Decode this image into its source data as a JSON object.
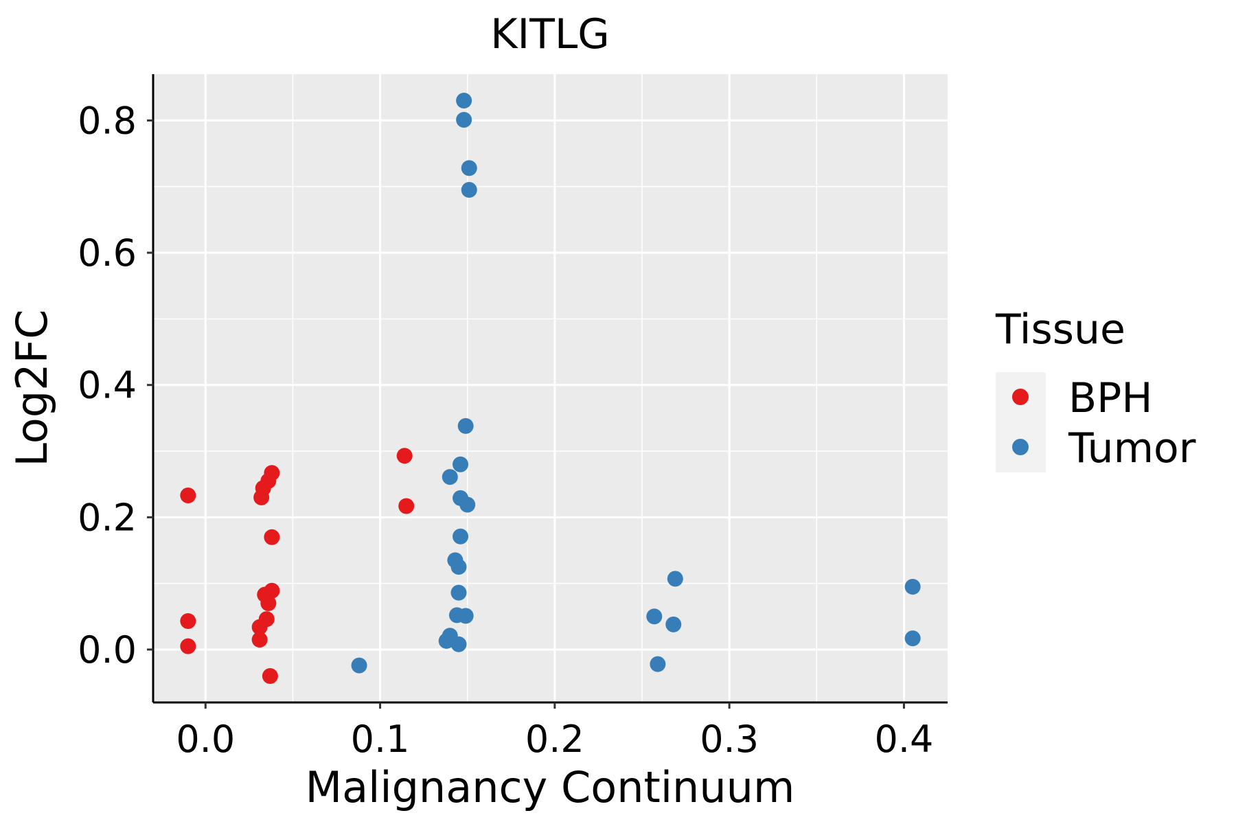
{
  "chart_data": {
    "type": "scatter",
    "title": "KITLG",
    "xlabel": "Malignancy Continuum",
    "ylabel": "Log2FC",
    "xlim": [
      -0.03,
      0.425
    ],
    "ylim": [
      -0.08,
      0.87
    ],
    "x_ticks": [
      0.0,
      0.1,
      0.2,
      0.3,
      0.4
    ],
    "x_tick_labels": [
      "0.0",
      "0.1",
      "0.2",
      "0.3",
      "0.4"
    ],
    "y_ticks": [
      0.0,
      0.2,
      0.4,
      0.6,
      0.8
    ],
    "y_tick_labels": [
      "0.0",
      "0.2",
      "0.4",
      "0.6",
      "0.8"
    ],
    "grid": true,
    "legend": {
      "title": "Tissue",
      "position": "right"
    },
    "series": [
      {
        "name": "BPH",
        "color": "#E41A1C",
        "points": [
          [
            -0.01,
            0.233
          ],
          [
            -0.01,
            0.043
          ],
          [
            -0.01,
            0.005
          ],
          [
            0.031,
            0.015
          ],
          [
            0.031,
            0.034
          ],
          [
            0.032,
            0.23
          ],
          [
            0.033,
            0.244
          ],
          [
            0.034,
            0.083
          ],
          [
            0.035,
            0.046
          ],
          [
            0.036,
            0.255
          ],
          [
            0.036,
            0.07
          ],
          [
            0.037,
            -0.04
          ],
          [
            0.038,
            0.267
          ],
          [
            0.038,
            0.089
          ],
          [
            0.038,
            0.17
          ],
          [
            0.114,
            0.293
          ],
          [
            0.115,
            0.217
          ]
        ]
      },
      {
        "name": "Tumor",
        "color": "#377EB8",
        "points": [
          [
            0.088,
            -0.024
          ],
          [
            0.138,
            0.013
          ],
          [
            0.14,
            0.021
          ],
          [
            0.14,
            0.261
          ],
          [
            0.143,
            0.135
          ],
          [
            0.144,
            0.052
          ],
          [
            0.145,
            0.125
          ],
          [
            0.145,
            0.086
          ],
          [
            0.145,
            0.008
          ],
          [
            0.146,
            0.229
          ],
          [
            0.146,
            0.171
          ],
          [
            0.146,
            0.28
          ],
          [
            0.148,
            0.83
          ],
          [
            0.148,
            0.801
          ],
          [
            0.149,
            0.338
          ],
          [
            0.149,
            0.051
          ],
          [
            0.15,
            0.219
          ],
          [
            0.151,
            0.728
          ],
          [
            0.151,
            0.695
          ],
          [
            0.257,
            0.05
          ],
          [
            0.259,
            -0.022
          ],
          [
            0.268,
            0.038
          ],
          [
            0.269,
            0.107
          ],
          [
            0.405,
            0.095
          ],
          [
            0.405,
            0.017
          ]
        ]
      }
    ]
  }
}
